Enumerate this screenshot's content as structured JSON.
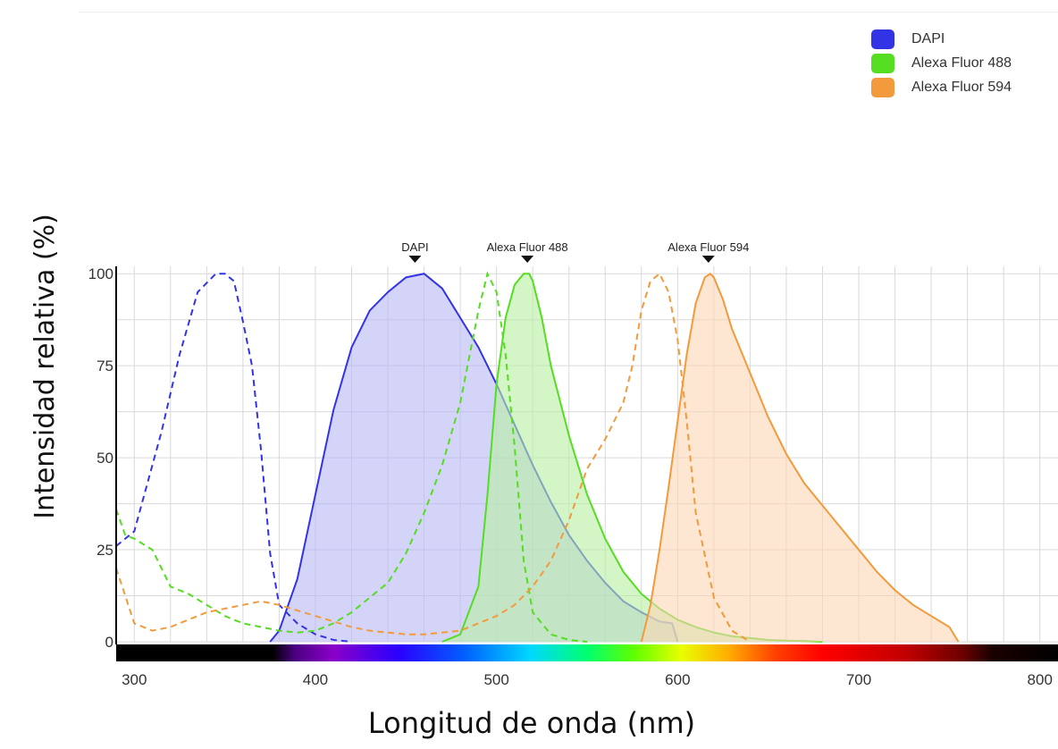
{
  "chart_data": {
    "type": "area",
    "xlabel": "Longitud de onda (nm)",
    "ylabel": "Intensidad relativa (%)",
    "xlim": [
      290,
      810
    ],
    "ylim": [
      0,
      102
    ],
    "x_ticks": [
      300,
      400,
      500,
      600,
      700,
      800
    ],
    "y_ticks": [
      0,
      25,
      50,
      75,
      100
    ],
    "grid": true,
    "legend_position": "top-right",
    "legend": [
      {
        "label": "DAPI",
        "color": "#3333e6"
      },
      {
        "label": "Alexa Fluor 488",
        "color": "#55dd22"
      },
      {
        "label": "Alexa Fluor 594",
        "color": "#f29a3c"
      }
    ],
    "peak_labels": [
      {
        "label": "DAPI",
        "x": 455
      },
      {
        "label": "Alexa Fluor 488",
        "x": 517
      },
      {
        "label": "Alexa Fluor 594",
        "x": 617
      }
    ],
    "series": [
      {
        "name": "DAPI",
        "curve": "excitation",
        "style": "dashed",
        "color": "#3333e6",
        "x": [
          290,
          300,
          315,
          325,
          335,
          345,
          350,
          355,
          360,
          365,
          370,
          375,
          380,
          390,
          400,
          410,
          420
        ],
        "y": [
          26,
          30,
          57,
          78,
          95,
          100,
          100,
          98,
          87,
          75,
          52,
          24,
          10,
          5,
          2,
          0.5,
          0
        ]
      },
      {
        "name": "DAPI",
        "curve": "emission",
        "style": "filled",
        "color": "#3333e6",
        "fill": "#b8b8f5",
        "x": [
          375,
          380,
          390,
          400,
          410,
          420,
          430,
          440,
          450,
          460,
          470,
          480,
          490,
          500,
          510,
          520,
          530,
          540,
          550,
          560,
          570,
          580,
          590,
          597,
          600
        ],
        "y": [
          0,
          3,
          17,
          40,
          63,
          80,
          90,
          95,
          99,
          100,
          96,
          88,
          80,
          70,
          59,
          48,
          38,
          29,
          22,
          16,
          11,
          8,
          5.5,
          5,
          0
        ]
      },
      {
        "name": "Alexa Fluor 488",
        "curve": "excitation",
        "style": "dashed",
        "color": "#55dd22",
        "x": [
          290,
          295,
          300,
          310,
          320,
          330,
          340,
          350,
          360,
          370,
          380,
          390,
          400,
          410,
          420,
          430,
          440,
          450,
          460,
          470,
          480,
          490,
          495,
          500,
          505,
          510,
          515,
          520,
          530,
          540,
          550
        ],
        "y": [
          36,
          29,
          28,
          25,
          15,
          13,
          10,
          7,
          5,
          4,
          3,
          2.5,
          3,
          5,
          8,
          12,
          16,
          24,
          35,
          48,
          65,
          90,
          100,
          95,
          78,
          53,
          22,
          8,
          2,
          0.5,
          0
        ]
      },
      {
        "name": "Alexa Fluor 488",
        "curve": "emission",
        "style": "filled",
        "color": "#55dd22",
        "fill": "#b8f0a2",
        "x": [
          470,
          480,
          490,
          495,
          500,
          505,
          510,
          515,
          518,
          520,
          525,
          530,
          540,
          550,
          560,
          570,
          580,
          590,
          600,
          610,
          620,
          630,
          640,
          650,
          660,
          670,
          680
        ],
        "y": [
          0,
          2,
          15,
          40,
          70,
          88,
          97,
          100,
          100,
          98,
          88,
          75,
          56,
          40,
          28,
          19,
          13,
          9,
          6,
          4,
          2.5,
          1.5,
          1,
          0.5,
          0.3,
          0.2,
          0
        ]
      },
      {
        "name": "Alexa Fluor 594",
        "curve": "excitation",
        "style": "dashed",
        "color": "#f29a3c",
        "x": [
          290,
          300,
          310,
          320,
          330,
          340,
          350,
          360,
          370,
          380,
          390,
          400,
          410,
          420,
          430,
          440,
          450,
          460,
          470,
          480,
          490,
          500,
          510,
          520,
          530,
          540,
          550,
          560,
          570,
          575,
          580,
          585,
          590,
          595,
          600,
          605,
          610,
          620,
          630,
          640
        ],
        "y": [
          20,
          5,
          3,
          4,
          6,
          8,
          9,
          10,
          11,
          10,
          8.5,
          7,
          5.5,
          4,
          3,
          2.5,
          2,
          2,
          2.5,
          3,
          5,
          7,
          10,
          15,
          22,
          33,
          47,
          55,
          65,
          75,
          90,
          98,
          100,
          95,
          82,
          60,
          35,
          12,
          3,
          0
        ]
      },
      {
        "name": "Alexa Fluor 594",
        "curve": "emission",
        "style": "filled",
        "color": "#f29a3c",
        "fill": "#fcd6b4",
        "x": [
          580,
          585,
          590,
          595,
          600,
          605,
          610,
          615,
          618,
          620,
          625,
          630,
          640,
          650,
          660,
          670,
          680,
          690,
          700,
          710,
          720,
          730,
          740,
          750,
          755
        ],
        "y": [
          0,
          10,
          25,
          42,
          60,
          78,
          92,
          99,
          100,
          99,
          93,
          85,
          73,
          61,
          51,
          43,
          37,
          31,
          25,
          19,
          14,
          10,
          7,
          4,
          0
        ]
      }
    ]
  }
}
